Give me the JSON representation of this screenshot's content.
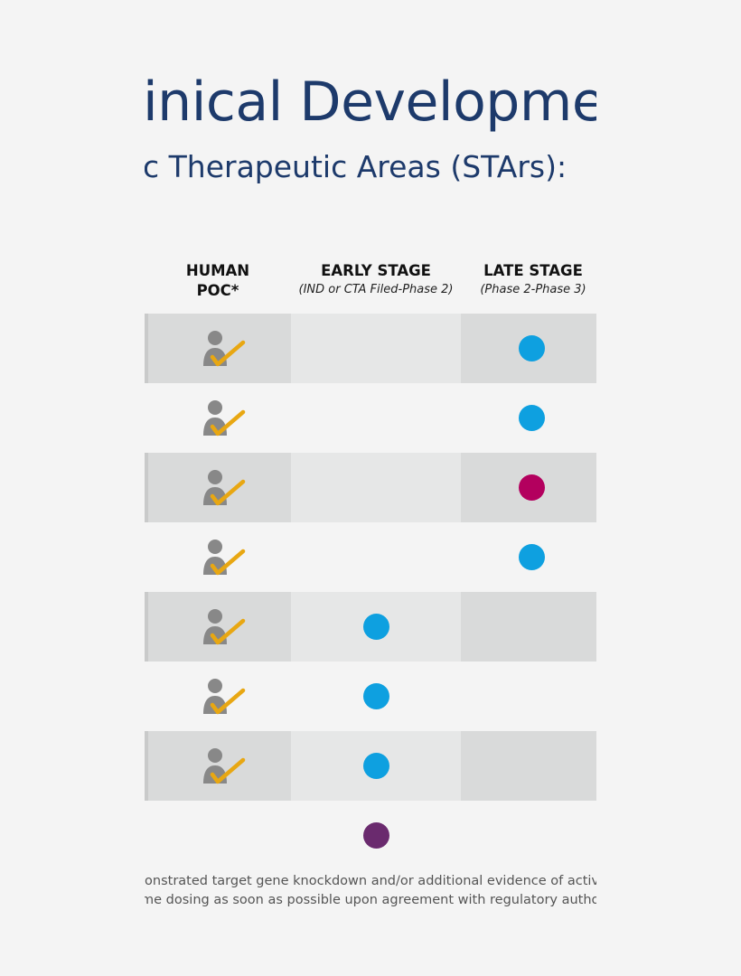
{
  "heading": {
    "title": "inical Developmen",
    "subtitle": "c Therapeutic Areas (STArs):"
  },
  "columns": {
    "poc": {
      "line1": "HUMAN",
      "line2": "POC*"
    },
    "early": {
      "label": "EARLY STAGE",
      "sub": "(IND or CTA Filed-Phase 2)"
    },
    "late": {
      "label": "LATE STAGE",
      "sub": "(Phase 2-Phase 3)"
    }
  },
  "icons": {
    "person_check": "person-with-checkmark-icon"
  },
  "colors": {
    "title": "#1d3a6b",
    "blue_dot": "#0ea0e0",
    "magenta_dot": "#b3005e",
    "purple_dot": "#6a2a6e",
    "person": "#888888",
    "check": "#e8a712"
  },
  "rows": [
    {
      "poc": true,
      "stage": "late",
      "color": "#0ea0e0",
      "shaded": true
    },
    {
      "poc": true,
      "stage": "late",
      "color": "#0ea0e0",
      "shaded": false
    },
    {
      "poc": true,
      "stage": "late",
      "color": "#b3005e",
      "shaded": true
    },
    {
      "poc": true,
      "stage": "late",
      "color": "#0ea0e0",
      "shaded": false
    },
    {
      "poc": true,
      "stage": "early",
      "color": "#0ea0e0",
      "shaded": true
    },
    {
      "poc": true,
      "stage": "early",
      "color": "#0ea0e0",
      "shaded": false
    },
    {
      "poc": true,
      "stage": "early",
      "color": "#0ea0e0",
      "shaded": true
    },
    {
      "poc": false,
      "stage": "early",
      "color": "#6a2a6e",
      "shaded": false
    }
  ],
  "footnotes": [
    "ionstrated target gene knockdown and/or additional evidence of activity in",
    "me dosing as soon as possible upon agreement with regulatory authorities"
  ]
}
